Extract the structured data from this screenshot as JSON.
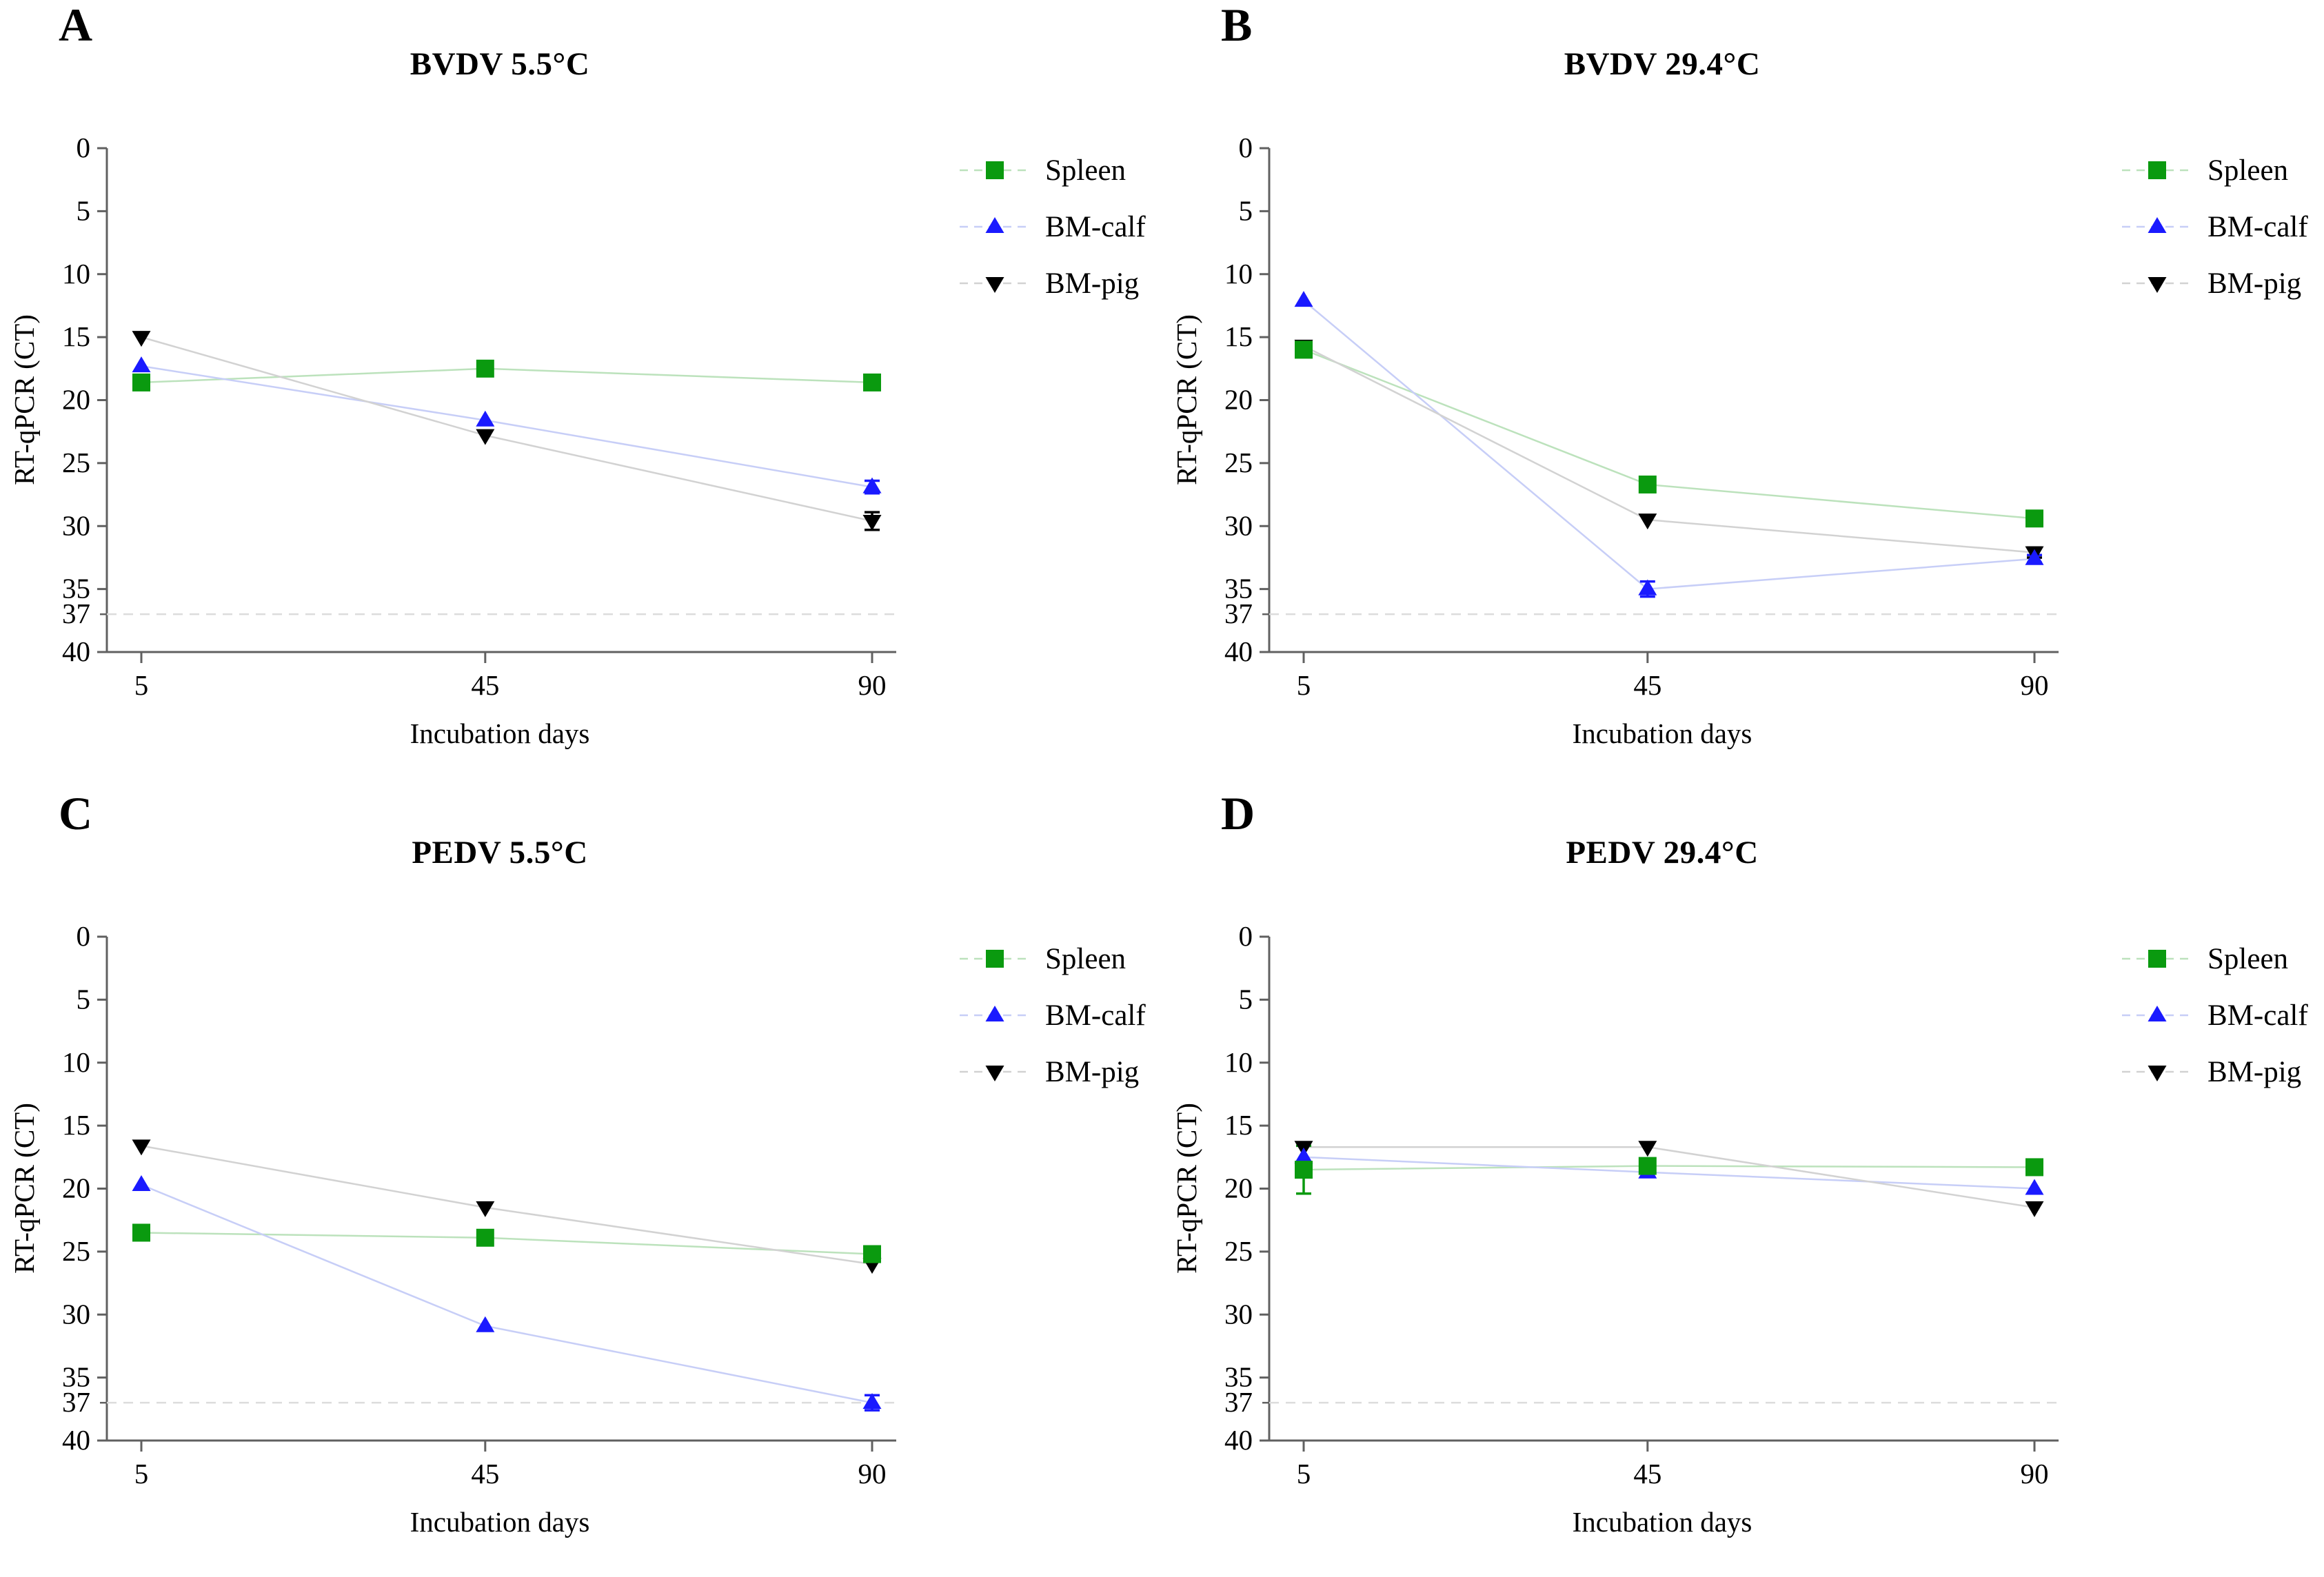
{
  "figure": {
    "xlabel": "Incubation days",
    "ylabel": "RT-qPCR (CT)",
    "panels": [
      {
        "label": "A"
      },
      {
        "label": "B"
      },
      {
        "label": "C"
      },
      {
        "label": "D"
      }
    ]
  },
  "colors": {
    "spleen": "#0a9a0f",
    "bm_calf": "#1a1aff",
    "bm_pig": "#000000",
    "spleen_line": "#bce2bc",
    "bm_calf_line": "#c7cef7",
    "bm_pig_line": "#d2d2d2",
    "axis": "#606060",
    "threshold_line": "#dcdcdc"
  },
  "chart_data": [
    {
      "type": "line",
      "title": "BVDV 5.5°C",
      "xlabel": "Incubation days",
      "ylabel": "RT-qPCR (CT)",
      "x": [
        5,
        45,
        90
      ],
      "yticks": [
        0,
        5,
        10,
        15,
        20,
        25,
        30,
        35,
        40
      ],
      "ylim": [
        0,
        40
      ],
      "y_axis_inverted": true,
      "threshold": 37,
      "grid": false,
      "legend_position": "right",
      "series": [
        {
          "name": "Spleen",
          "marker": "square",
          "color": "#0a9a0f",
          "line_color": "#bce2bc",
          "values": [
            18.6,
            17.5,
            18.6
          ],
          "errors": [
            0,
            0,
            0
          ]
        },
        {
          "name": "BM-calf",
          "marker": "triangle-up",
          "color": "#1a1aff",
          "line_color": "#c7cef7",
          "values": [
            17.3,
            21.6,
            26.9
          ],
          "errors": [
            0,
            0,
            0.5
          ]
        },
        {
          "name": "BM-pig",
          "marker": "triangle-down",
          "color": "#000000",
          "line_color": "#d2d2d2",
          "values": [
            15.0,
            22.8,
            29.6
          ],
          "errors": [
            0,
            0,
            0.7
          ]
        }
      ]
    },
    {
      "type": "line",
      "title": "BVDV 29.4°C",
      "xlabel": "Incubation days",
      "ylabel": "RT-qPCR (CT)",
      "x": [
        5,
        45,
        90
      ],
      "yticks": [
        0,
        5,
        10,
        15,
        20,
        25,
        30,
        35,
        40
      ],
      "ylim": [
        0,
        40
      ],
      "y_axis_inverted": true,
      "threshold": 37,
      "grid": false,
      "legend_position": "right",
      "series": [
        {
          "name": "Spleen",
          "marker": "square",
          "color": "#0a9a0f",
          "line_color": "#bce2bc",
          "values": [
            16.0,
            26.7,
            29.4
          ],
          "errors": [
            0.3,
            0,
            0
          ]
        },
        {
          "name": "BM-calf",
          "marker": "triangle-up",
          "color": "#1a1aff",
          "line_color": "#c7cef7",
          "values": [
            12.1,
            35.0,
            32.6
          ],
          "errors": [
            0,
            0.6,
            0.3
          ]
        },
        {
          "name": "BM-pig",
          "marker": "triangle-down",
          "color": "#000000",
          "line_color": "#d2d2d2",
          "values": [
            15.7,
            29.5,
            32.1
          ],
          "errors": [
            0,
            0,
            0.4
          ]
        }
      ]
    },
    {
      "type": "line",
      "title": "PEDV 5.5°C",
      "xlabel": "Incubation days",
      "ylabel": "RT-qPCR (CT)",
      "x": [
        5,
        45,
        90
      ],
      "yticks": [
        0,
        5,
        10,
        15,
        20,
        25,
        30,
        35,
        40
      ],
      "ylim": [
        0,
        40
      ],
      "y_axis_inverted": true,
      "threshold": 37,
      "grid": false,
      "legend_position": "right",
      "series": [
        {
          "name": "Spleen",
          "marker": "square",
          "color": "#0a9a0f",
          "line_color": "#bce2bc",
          "values": [
            23.5,
            23.9,
            25.2
          ],
          "errors": [
            0,
            0,
            0
          ]
        },
        {
          "name": "BM-calf",
          "marker": "triangle-up",
          "color": "#1a1aff",
          "line_color": "#c7cef7",
          "values": [
            19.7,
            30.9,
            37.0
          ],
          "errors": [
            0,
            0,
            0.6
          ]
        },
        {
          "name": "BM-pig",
          "marker": "triangle-down",
          "color": "#000000",
          "line_color": "#d2d2d2",
          "values": [
            16.6,
            21.5,
            26.0
          ],
          "errors": [
            0,
            0,
            0
          ]
        }
      ]
    },
    {
      "type": "line",
      "title": "PEDV 29.4°C",
      "xlabel": "Incubation days",
      "ylabel": "RT-qPCR (CT)",
      "x": [
        5,
        45,
        90
      ],
      "yticks": [
        0,
        5,
        10,
        15,
        20,
        25,
        30,
        35,
        40
      ],
      "ylim": [
        0,
        40
      ],
      "y_axis_inverted": true,
      "threshold": 37,
      "grid": false,
      "legend_position": "right",
      "series": [
        {
          "name": "Spleen",
          "marker": "square",
          "color": "#0a9a0f",
          "line_color": "#bce2bc",
          "values": [
            18.5,
            18.2,
            18.3
          ],
          "errors": [
            1.9,
            0,
            0
          ]
        },
        {
          "name": "BM-calf",
          "marker": "triangle-up",
          "color": "#1a1aff",
          "line_color": "#c7cef7",
          "values": [
            17.5,
            18.7,
            20.0
          ],
          "errors": [
            0,
            0,
            0
          ]
        },
        {
          "name": "BM-pig",
          "marker": "triangle-down",
          "color": "#000000",
          "line_color": "#d2d2d2",
          "values": [
            16.7,
            16.7,
            21.5
          ],
          "errors": [
            0,
            0,
            0
          ]
        }
      ]
    }
  ]
}
